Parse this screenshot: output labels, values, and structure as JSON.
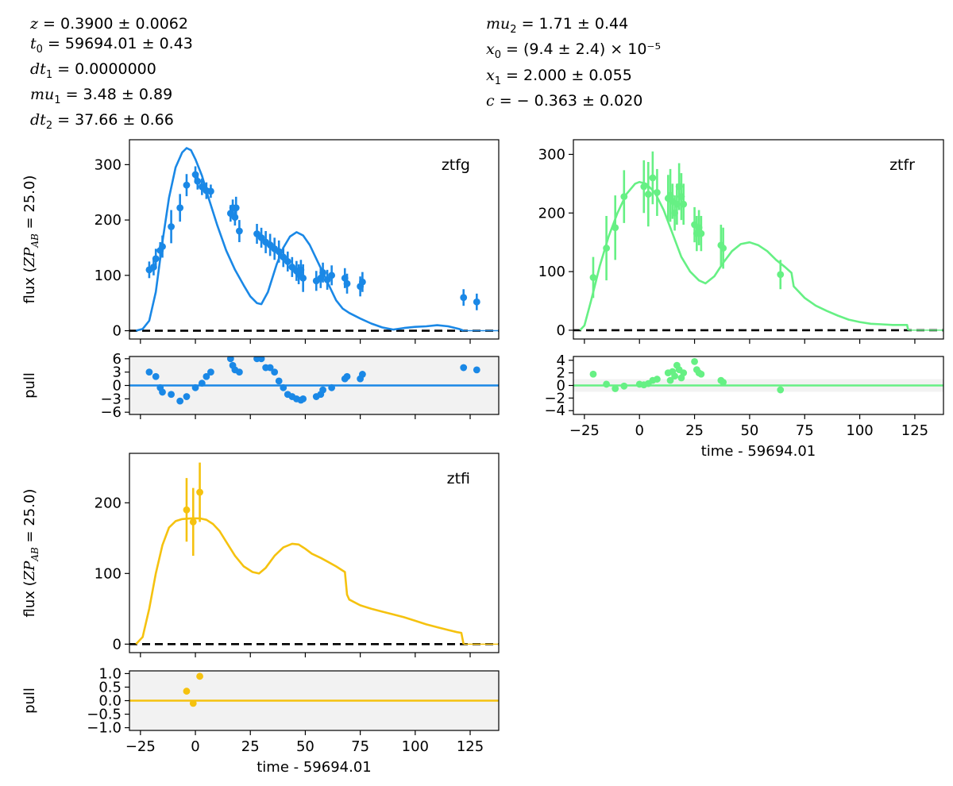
{
  "params_left": [
    {
      "sym": "z",
      "sub": "",
      "value": " = 0.3900 ± 0.0062"
    },
    {
      "sym": "t",
      "sub": "0",
      "value": " = 59694.01 ± 0.43"
    },
    {
      "sym": "dt",
      "sub": "1",
      "value": " = 0.0000000"
    },
    {
      "sym": "mu",
      "sub": "1",
      "value": " = 3.48 ± 0.89"
    },
    {
      "sym": "dt",
      "sub": "2",
      "value": " = 37.66 ± 0.66"
    }
  ],
  "params_right": [
    {
      "sym": "mu",
      "sub": "2",
      "value": " = 1.71 ± 0.44"
    },
    {
      "sym": "x",
      "sub": "0",
      "value": " = (9.4 ± 2.4) × 10⁻⁵"
    },
    {
      "sym": "x",
      "sub": "1",
      "value": " = 2.000 ± 0.055"
    },
    {
      "sym": "c",
      "sub": "",
      "value": " = − 0.363 ± 0.020"
    }
  ],
  "chart_data": [
    {
      "type": "scatter",
      "band": "ztfg",
      "color": "#1a88e6",
      "xlabel": "",
      "ylabel": "flux (ZP_AB = 25.0)",
      "xlim": [
        -30,
        138
      ],
      "ylim": [
        -15,
        345
      ],
      "xticks": [
        -25,
        0,
        25,
        50,
        75,
        100,
        125
      ],
      "yticks": [
        0,
        100,
        200,
        300
      ],
      "points": [
        {
          "x": -21,
          "y": 110,
          "err": 15
        },
        {
          "x": -19,
          "y": 115,
          "err": 15
        },
        {
          "x": -18,
          "y": 130,
          "err": 18
        },
        {
          "x": -16,
          "y": 145,
          "err": 15
        },
        {
          "x": -15,
          "y": 152,
          "err": 20
        },
        {
          "x": -11,
          "y": 188,
          "err": 30
        },
        {
          "x": -7,
          "y": 222,
          "err": 25
        },
        {
          "x": -4,
          "y": 263,
          "err": 20
        },
        {
          "x": 0,
          "y": 282,
          "err": 15
        },
        {
          "x": 1,
          "y": 270,
          "err": 15
        },
        {
          "x": 3,
          "y": 260,
          "err": 15
        },
        {
          "x": 5,
          "y": 253,
          "err": 15
        },
        {
          "x": 7,
          "y": 252,
          "err": 12
        },
        {
          "x": 16,
          "y": 212,
          "err": 15
        },
        {
          "x": 17,
          "y": 222,
          "err": 15
        },
        {
          "x": 18,
          "y": 205,
          "err": 15
        },
        {
          "x": 18.5,
          "y": 222,
          "err": 20
        },
        {
          "x": 20,
          "y": 180,
          "err": 20
        },
        {
          "x": 28,
          "y": 175,
          "err": 18
        },
        {
          "x": 30,
          "y": 168,
          "err": 18
        },
        {
          "x": 32,
          "y": 160,
          "err": 20
        },
        {
          "x": 34,
          "y": 155,
          "err": 20
        },
        {
          "x": 36,
          "y": 148,
          "err": 20
        },
        {
          "x": 38,
          "y": 143,
          "err": 20
        },
        {
          "x": 40,
          "y": 133,
          "err": 18
        },
        {
          "x": 42,
          "y": 125,
          "err": 18
        },
        {
          "x": 44,
          "y": 115,
          "err": 18
        },
        {
          "x": 46,
          "y": 108,
          "err": 18
        },
        {
          "x": 47,
          "y": 102,
          "err": 18
        },
        {
          "x": 48,
          "y": 110,
          "err": 18
        },
        {
          "x": 49,
          "y": 95,
          "err": 25
        },
        {
          "x": 55,
          "y": 90,
          "err": 18
        },
        {
          "x": 57,
          "y": 95,
          "err": 18
        },
        {
          "x": 58,
          "y": 105,
          "err": 18
        },
        {
          "x": 60,
          "y": 92,
          "err": 18
        },
        {
          "x": 62,
          "y": 100,
          "err": 18
        },
        {
          "x": 68,
          "y": 95,
          "err": 18
        },
        {
          "x": 69,
          "y": 85,
          "err": 18
        },
        {
          "x": 75,
          "y": 80,
          "err": 18
        },
        {
          "x": 76,
          "y": 88,
          "err": 18
        },
        {
          "x": 122,
          "y": 60,
          "err": 15
        },
        {
          "x": 128,
          "y": 52,
          "err": 15
        }
      ],
      "model": [
        [
          -27,
          0
        ],
        [
          -24,
          3
        ],
        [
          -21,
          18
        ],
        [
          -18,
          70
        ],
        [
          -15,
          160
        ],
        [
          -12,
          240
        ],
        [
          -9,
          295
        ],
        [
          -6,
          322
        ],
        [
          -4,
          330
        ],
        [
          -2,
          326
        ],
        [
          0,
          310
        ],
        [
          3,
          280
        ],
        [
          6,
          240
        ],
        [
          10,
          190
        ],
        [
          14,
          145
        ],
        [
          18,
          110
        ],
        [
          22,
          82
        ],
        [
          25,
          62
        ],
        [
          28,
          50
        ],
        [
          30,
          48
        ],
        [
          33,
          70
        ],
        [
          37,
          120
        ],
        [
          40,
          150
        ],
        [
          43,
          170
        ],
        [
          46,
          178
        ],
        [
          49,
          172
        ],
        [
          52,
          155
        ],
        [
          55,
          130
        ],
        [
          58,
          105
        ],
        [
          61,
          80
        ],
        [
          64,
          55
        ],
        [
          67,
          40
        ],
        [
          70,
          32
        ],
        [
          75,
          22
        ],
        [
          80,
          13
        ],
        [
          85,
          6
        ],
        [
          90,
          2
        ],
        [
          95,
          5
        ],
        [
          100,
          7
        ],
        [
          105,
          8
        ],
        [
          110,
          10
        ],
        [
          115,
          8
        ],
        [
          120,
          3
        ],
        [
          122,
          0
        ]
      ],
      "pull_ylim": [
        -6.5,
        6.5
      ],
      "pull_yticks": [
        -6,
        -3,
        0,
        3,
        6
      ],
      "pull_yticklabels": [
        "−6",
        "−3",
        "0",
        "3",
        "6"
      ],
      "pull_band": [
        -6.5,
        6.5
      ],
      "pull_points": [
        {
          "x": -21,
          "y": 3
        },
        {
          "x": -18,
          "y": 2
        },
        {
          "x": -16,
          "y": -0.5
        },
        {
          "x": -15,
          "y": -1.5
        },
        {
          "x": -11,
          "y": -2
        },
        {
          "x": -7,
          "y": -3.5
        },
        {
          "x": -4,
          "y": -2.5
        },
        {
          "x": 0,
          "y": -0.5
        },
        {
          "x": 3,
          "y": 0.5
        },
        {
          "x": 5,
          "y": 2
        },
        {
          "x": 7,
          "y": 3
        },
        {
          "x": 16,
          "y": 6
        },
        {
          "x": 17,
          "y": 4.5
        },
        {
          "x": 18,
          "y": 3.5
        },
        {
          "x": 20,
          "y": 3
        },
        {
          "x": 28,
          "y": 6
        },
        {
          "x": 30,
          "y": 6
        },
        {
          "x": 32,
          "y": 4
        },
        {
          "x": 34,
          "y": 4
        },
        {
          "x": 36,
          "y": 3
        },
        {
          "x": 38,
          "y": 1
        },
        {
          "x": 40,
          "y": -0.5
        },
        {
          "x": 42,
          "y": -2
        },
        {
          "x": 44,
          "y": -2.5
        },
        {
          "x": 46,
          "y": -3
        },
        {
          "x": 48,
          "y": -3.3
        },
        {
          "x": 49,
          "y": -3
        },
        {
          "x": 55,
          "y": -2.5
        },
        {
          "x": 57,
          "y": -2
        },
        {
          "x": 58,
          "y": -1
        },
        {
          "x": 62,
          "y": -0.5
        },
        {
          "x": 68,
          "y": 1.5
        },
        {
          "x": 69,
          "y": 2
        },
        {
          "x": 75,
          "y": 1.5
        },
        {
          "x": 76,
          "y": 2.5
        },
        {
          "x": 122,
          "y": 4
        },
        {
          "x": 128,
          "y": 3.5
        }
      ]
    },
    {
      "type": "scatter",
      "band": "ztfr",
      "color": "#66f084",
      "xlabel": "time - 59694.01",
      "ylabel": "",
      "xlim": [
        -30,
        138
      ],
      "ylim": [
        -15,
        325
      ],
      "xticks": [
        -25,
        0,
        25,
        50,
        75,
        100,
        125
      ],
      "yticks": [
        0,
        100,
        200,
        300
      ],
      "points": [
        {
          "x": -21,
          "y": 90,
          "err": 35
        },
        {
          "x": -15,
          "y": 140,
          "err": 55
        },
        {
          "x": -11,
          "y": 175,
          "err": 55
        },
        {
          "x": -7,
          "y": 228,
          "err": 45
        },
        {
          "x": 2,
          "y": 245,
          "err": 45
        },
        {
          "x": 4,
          "y": 232,
          "err": 55
        },
        {
          "x": 6,
          "y": 260,
          "err": 45
        },
        {
          "x": 8,
          "y": 235,
          "err": 40
        },
        {
          "x": 13,
          "y": 225,
          "err": 40
        },
        {
          "x": 14,
          "y": 230,
          "err": 45
        },
        {
          "x": 15,
          "y": 220,
          "err": 30
        },
        {
          "x": 16,
          "y": 200,
          "err": 30
        },
        {
          "x": 17,
          "y": 215,
          "err": 35
        },
        {
          "x": 18,
          "y": 245,
          "err": 40
        },
        {
          "x": 19,
          "y": 228,
          "err": 40
        },
        {
          "x": 20,
          "y": 215,
          "err": 35
        },
        {
          "x": 25,
          "y": 180,
          "err": 30
        },
        {
          "x": 26,
          "y": 165,
          "err": 30
        },
        {
          "x": 27,
          "y": 175,
          "err": 30
        },
        {
          "x": 28,
          "y": 165,
          "err": 30
        },
        {
          "x": 37,
          "y": 145,
          "err": 35
        },
        {
          "x": 38,
          "y": 140,
          "err": 35
        },
        {
          "x": 64,
          "y": 95,
          "err": 25
        }
      ],
      "model": [
        [
          -27,
          0
        ],
        [
          -25,
          8
        ],
        [
          -22,
          50
        ],
        [
          -18,
          110
        ],
        [
          -14,
          160
        ],
        [
          -10,
          200
        ],
        [
          -6,
          232
        ],
        [
          -2,
          250
        ],
        [
          0,
          253
        ],
        [
          3,
          250
        ],
        [
          7,
          235
        ],
        [
          11,
          205
        ],
        [
          15,
          165
        ],
        [
          19,
          125
        ],
        [
          23,
          100
        ],
        [
          27,
          85
        ],
        [
          30,
          80
        ],
        [
          34,
          92
        ],
        [
          38,
          115
        ],
        [
          42,
          135
        ],
        [
          46,
          147
        ],
        [
          50,
          150
        ],
        [
          54,
          145
        ],
        [
          58,
          135
        ],
        [
          62,
          120
        ],
        [
          66,
          108
        ],
        [
          69,
          98
        ],
        [
          70,
          75
        ],
        [
          75,
          55
        ],
        [
          80,
          42
        ],
        [
          85,
          33
        ],
        [
          90,
          25
        ],
        [
          95,
          18
        ],
        [
          100,
          14
        ],
        [
          105,
          11
        ],
        [
          110,
          10
        ],
        [
          115,
          9
        ],
        [
          120,
          9
        ],
        [
          121.5,
          9
        ],
        [
          122,
          0
        ]
      ],
      "pull_ylim": [
        -4.6,
        4.6
      ],
      "pull_yticks": [
        -4,
        -2,
        0,
        2,
        4
      ],
      "pull_yticklabels": [
        "−4",
        "−2",
        "0",
        "2",
        "4"
      ],
      "pull_band": [
        -1,
        1
      ],
      "pull_points": [
        {
          "x": -21,
          "y": 1.8
        },
        {
          "x": -15,
          "y": 0.2
        },
        {
          "x": -11,
          "y": -0.5
        },
        {
          "x": -7,
          "y": -0.1
        },
        {
          "x": 0,
          "y": 0.2
        },
        {
          "x": 2,
          "y": 0.1
        },
        {
          "x": 4,
          "y": 0.3
        },
        {
          "x": 6,
          "y": 0.8
        },
        {
          "x": 8,
          "y": 1
        },
        {
          "x": 13,
          "y": 2
        },
        {
          "x": 14,
          "y": 0.8
        },
        {
          "x": 15,
          "y": 2.2
        },
        {
          "x": 16,
          "y": 1.5
        },
        {
          "x": 17,
          "y": 3.2
        },
        {
          "x": 18,
          "y": 2.5
        },
        {
          "x": 19,
          "y": 1.2
        },
        {
          "x": 20,
          "y": 2
        },
        {
          "x": 25,
          "y": 3.8
        },
        {
          "x": 26,
          "y": 2.5
        },
        {
          "x": 27,
          "y": 2
        },
        {
          "x": 28,
          "y": 1.8
        },
        {
          "x": 37,
          "y": 0.8
        },
        {
          "x": 38,
          "y": 0.5
        },
        {
          "x": 64,
          "y": -0.7
        }
      ]
    },
    {
      "type": "scatter",
      "band": "ztfi",
      "color": "#f5c20f",
      "xlabel": "time - 59694.01",
      "ylabel": "flux (ZP_AB = 25.0)",
      "xlim": [
        -30,
        138
      ],
      "ylim": [
        -12,
        270
      ],
      "xticks": [
        -25,
        0,
        25,
        50,
        75,
        100,
        125
      ],
      "yticks": [
        0,
        100,
        200
      ],
      "points": [
        {
          "x": -4,
          "y": 190,
          "err": 45
        },
        {
          "x": -1,
          "y": 173,
          "err": 48
        },
        {
          "x": 2,
          "y": 215,
          "err": 42
        }
      ],
      "model": [
        [
          -27,
          0
        ],
        [
          -24,
          10
        ],
        [
          -21,
          50
        ],
        [
          -18,
          100
        ],
        [
          -15,
          140
        ],
        [
          -12,
          165
        ],
        [
          -9,
          174
        ],
        [
          -6,
          177
        ],
        [
          -2,
          178
        ],
        [
          2,
          178
        ],
        [
          5,
          176
        ],
        [
          8,
          170
        ],
        [
          11,
          160
        ],
        [
          14,
          145
        ],
        [
          18,
          125
        ],
        [
          22,
          110
        ],
        [
          26,
          102
        ],
        [
          29,
          100
        ],
        [
          32,
          108
        ],
        [
          36,
          125
        ],
        [
          40,
          137
        ],
        [
          44,
          142
        ],
        [
          47,
          141
        ],
        [
          50,
          135
        ],
        [
          53,
          128
        ],
        [
          57,
          122
        ],
        [
          60,
          117
        ],
        [
          64,
          110
        ],
        [
          68,
          102
        ],
        [
          69,
          70
        ],
        [
          70,
          63
        ],
        [
          75,
          55
        ],
        [
          80,
          50
        ],
        [
          85,
          46
        ],
        [
          90,
          42
        ],
        [
          95,
          38
        ],
        [
          100,
          33
        ],
        [
          105,
          28
        ],
        [
          110,
          24
        ],
        [
          115,
          20
        ],
        [
          119,
          17
        ],
        [
          121,
          16
        ],
        [
          122,
          0
        ]
      ],
      "pull_ylim": [
        -1.1,
        1.1
      ],
      "pull_yticks": [
        -1,
        -0.5,
        0,
        0.5,
        1
      ],
      "pull_yticklabels": [
        "−1.0",
        "−0.5",
        "0.0",
        "0.5",
        "1.0"
      ],
      "pull_band": [
        -1.1,
        1.1
      ],
      "pull_points": [
        {
          "x": -4,
          "y": 0.35
        },
        {
          "x": -1,
          "y": -0.1
        },
        {
          "x": 2,
          "y": 0.9
        }
      ]
    }
  ],
  "pull_label": "pull"
}
